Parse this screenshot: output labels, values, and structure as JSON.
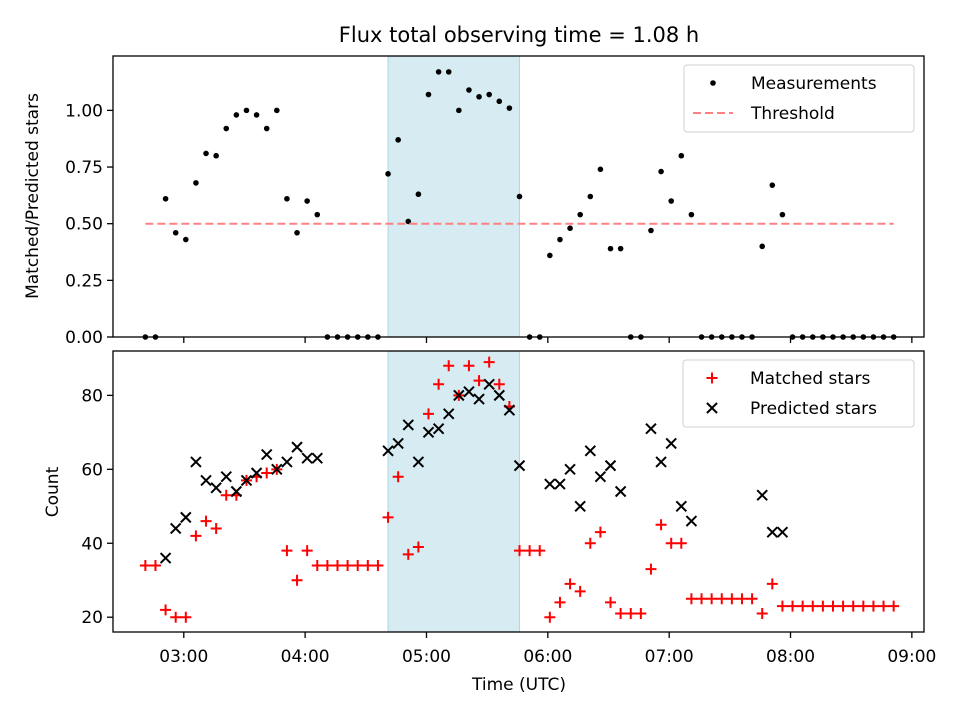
{
  "figure": {
    "title": "Flux total observing time = 1.08 h",
    "xlabel": "Time (UTC)",
    "x_ticks": [
      "03:00",
      "04:00",
      "05:00",
      "06:00",
      "07:00",
      "08:00",
      "09:00"
    ]
  },
  "chart_data": [
    {
      "type": "scatter",
      "title": "Flux total observing time = 1.08 h",
      "xlabel": "",
      "ylabel": "Matched/Predicted stars",
      "xlim": [
        "02:25",
        "09:06"
      ],
      "ylim": [
        0,
        1.24
      ],
      "y_ticks": [
        "0.00",
        "0.25",
        "0.50",
        "0.75",
        "1.00"
      ],
      "y_tick_values": [
        0,
        0.25,
        0.5,
        0.75,
        1.0
      ],
      "highlight_span": {
        "start": "04:41",
        "end": "05:46",
        "color": "#add8e6"
      },
      "legend_position": "top-right",
      "series": [
        {
          "name": "Measurements",
          "kind": "points",
          "color": "#000000",
          "points": [
            [
              "02:41",
              0.0
            ],
            [
              "02:46",
              0.0
            ],
            [
              "02:51",
              0.61
            ],
            [
              "02:56",
              0.46
            ],
            [
              "03:01",
              0.43
            ],
            [
              "03:06",
              0.68
            ],
            [
              "03:11",
              0.81
            ],
            [
              "03:16",
              0.8
            ],
            [
              "03:21",
              0.92
            ],
            [
              "03:26",
              0.98
            ],
            [
              "03:31",
              1.0
            ],
            [
              "03:36",
              0.98
            ],
            [
              "03:41",
              0.92
            ],
            [
              "03:46",
              1.0
            ],
            [
              "03:51",
              0.61
            ],
            [
              "03:56",
              0.46
            ],
            [
              "04:01",
              0.6
            ],
            [
              "04:06",
              0.54
            ],
            [
              "04:11",
              0.0
            ],
            [
              "04:16",
              0.0
            ],
            [
              "04:21",
              0.0
            ],
            [
              "04:26",
              0.0
            ],
            [
              "04:31",
              0.0
            ],
            [
              "04:36",
              0.0
            ],
            [
              "04:41",
              0.72
            ],
            [
              "04:46",
              0.87
            ],
            [
              "04:51",
              0.51
            ],
            [
              "04:56",
              0.63
            ],
            [
              "05:01",
              1.07
            ],
            [
              "05:06",
              1.17
            ],
            [
              "05:11",
              1.17
            ],
            [
              "05:16",
              1.0
            ],
            [
              "05:21",
              1.09
            ],
            [
              "05:26",
              1.06
            ],
            [
              "05:31",
              1.07
            ],
            [
              "05:36",
              1.04
            ],
            [
              "05:41",
              1.01
            ],
            [
              "05:46",
              0.62
            ],
            [
              "05:51",
              0.0
            ],
            [
              "05:56",
              0.0
            ],
            [
              "06:01",
              0.36
            ],
            [
              "06:06",
              0.43
            ],
            [
              "06:11",
              0.48
            ],
            [
              "06:16",
              0.54
            ],
            [
              "06:21",
              0.62
            ],
            [
              "06:26",
              0.74
            ],
            [
              "06:31",
              0.39
            ],
            [
              "06:36",
              0.39
            ],
            [
              "06:41",
              0.0
            ],
            [
              "06:46",
              0.0
            ],
            [
              "06:51",
              0.47
            ],
            [
              "06:56",
              0.73
            ],
            [
              "07:01",
              0.6
            ],
            [
              "07:06",
              0.8
            ],
            [
              "07:11",
              0.54
            ],
            [
              "07:16",
              0.0
            ],
            [
              "07:21",
              0.0
            ],
            [
              "07:26",
              0.0
            ],
            [
              "07:31",
              0.0
            ],
            [
              "07:36",
              0.0
            ],
            [
              "07:41",
              0.0
            ],
            [
              "07:46",
              0.4
            ],
            [
              "07:51",
              0.67
            ],
            [
              "07:56",
              0.54
            ],
            [
              "08:01",
              0.0
            ],
            [
              "08:06",
              0.0
            ],
            [
              "08:11",
              0.0
            ],
            [
              "08:16",
              0.0
            ],
            [
              "08:21",
              0.0
            ],
            [
              "08:26",
              0.0
            ],
            [
              "08:31",
              0.0
            ],
            [
              "08:36",
              0.0
            ],
            [
              "08:41",
              0.0
            ],
            [
              "08:46",
              0.0
            ],
            [
              "08:51",
              0.0
            ]
          ]
        },
        {
          "name": "Threshold",
          "kind": "dashed-line",
          "color": "#ff8080",
          "points": [
            [
              "02:41",
              0.5
            ],
            [
              "08:51",
              0.5
            ]
          ]
        }
      ]
    },
    {
      "type": "scatter",
      "title": "",
      "xlabel": "Time (UTC)",
      "ylabel": "Count",
      "xlim": [
        "02:25",
        "09:06"
      ],
      "ylim": [
        16,
        92
      ],
      "y_ticks": [
        "20",
        "40",
        "60",
        "80"
      ],
      "y_tick_values": [
        20,
        40,
        60,
        80
      ],
      "highlight_span": {
        "start": "04:41",
        "end": "05:46",
        "color": "#add8e6"
      },
      "legend_position": "top-right",
      "series": [
        {
          "name": "Matched stars",
          "kind": "plus",
          "color": "#ff0000",
          "points": [
            [
              "02:41",
              34
            ],
            [
              "02:46",
              34
            ],
            [
              "02:51",
              22
            ],
            [
              "02:56",
              20
            ],
            [
              "03:01",
              20
            ],
            [
              "03:06",
              42
            ],
            [
              "03:11",
              46
            ],
            [
              "03:16",
              44
            ],
            [
              "03:21",
              53
            ],
            [
              "03:26",
              53
            ],
            [
              "03:31",
              57
            ],
            [
              "03:36",
              58
            ],
            [
              "03:41",
              59
            ],
            [
              "03:46",
              60
            ],
            [
              "03:51",
              38
            ],
            [
              "03:56",
              30
            ],
            [
              "04:01",
              38
            ],
            [
              "04:06",
              34
            ],
            [
              "04:11",
              34
            ],
            [
              "04:16",
              34
            ],
            [
              "04:21",
              34
            ],
            [
              "04:26",
              34
            ],
            [
              "04:31",
              34
            ],
            [
              "04:36",
              34
            ],
            [
              "04:41",
              47
            ],
            [
              "04:46",
              58
            ],
            [
              "04:51",
              37
            ],
            [
              "04:56",
              39
            ],
            [
              "05:01",
              75
            ],
            [
              "05:06",
              83
            ],
            [
              "05:11",
              88
            ],
            [
              "05:16",
              80
            ],
            [
              "05:21",
              88
            ],
            [
              "05:26",
              84
            ],
            [
              "05:31",
              89
            ],
            [
              "05:36",
              83
            ],
            [
              "05:41",
              77
            ],
            [
              "05:46",
              38
            ],
            [
              "05:51",
              38
            ],
            [
              "05:56",
              38
            ],
            [
              "06:01",
              20
            ],
            [
              "06:06",
              24
            ],
            [
              "06:11",
              29
            ],
            [
              "06:16",
              27
            ],
            [
              "06:21",
              40
            ],
            [
              "06:26",
              43
            ],
            [
              "06:31",
              24
            ],
            [
              "06:36",
              21
            ],
            [
              "06:41",
              21
            ],
            [
              "06:46",
              21
            ],
            [
              "06:51",
              33
            ],
            [
              "06:56",
              45
            ],
            [
              "07:01",
              40
            ],
            [
              "07:06",
              40
            ],
            [
              "07:11",
              25
            ],
            [
              "07:16",
              25
            ],
            [
              "07:21",
              25
            ],
            [
              "07:26",
              25
            ],
            [
              "07:31",
              25
            ],
            [
              "07:36",
              25
            ],
            [
              "07:41",
              25
            ],
            [
              "07:46",
              21
            ],
            [
              "07:51",
              29
            ],
            [
              "07:56",
              23
            ],
            [
              "08:01",
              23
            ],
            [
              "08:06",
              23
            ],
            [
              "08:11",
              23
            ],
            [
              "08:16",
              23
            ],
            [
              "08:21",
              23
            ],
            [
              "08:26",
              23
            ],
            [
              "08:31",
              23
            ],
            [
              "08:36",
              23
            ],
            [
              "08:41",
              23
            ],
            [
              "08:46",
              23
            ],
            [
              "08:51",
              23
            ]
          ]
        },
        {
          "name": "Predicted stars",
          "kind": "cross",
          "color": "#000000",
          "points": [
            [
              "02:51",
              36
            ],
            [
              "02:56",
              44
            ],
            [
              "03:01",
              47
            ],
            [
              "03:06",
              62
            ],
            [
              "03:11",
              57
            ],
            [
              "03:16",
              55
            ],
            [
              "03:21",
              58
            ],
            [
              "03:26",
              54
            ],
            [
              "03:31",
              57
            ],
            [
              "03:36",
              59
            ],
            [
              "03:41",
              64
            ],
            [
              "03:46",
              60
            ],
            [
              "03:51",
              62
            ],
            [
              "03:56",
              66
            ],
            [
              "04:01",
              63
            ],
            [
              "04:06",
              63
            ],
            [
              "04:41",
              65
            ],
            [
              "04:46",
              67
            ],
            [
              "04:51",
              72
            ],
            [
              "04:56",
              62
            ],
            [
              "05:01",
              70
            ],
            [
              "05:06",
              71
            ],
            [
              "05:11",
              75
            ],
            [
              "05:16",
              80
            ],
            [
              "05:21",
              81
            ],
            [
              "05:26",
              79
            ],
            [
              "05:31",
              83
            ],
            [
              "05:36",
              80
            ],
            [
              "05:41",
              76
            ],
            [
              "05:46",
              61
            ],
            [
              "06:01",
              56
            ],
            [
              "06:06",
              56
            ],
            [
              "06:11",
              60
            ],
            [
              "06:16",
              50
            ],
            [
              "06:21",
              65
            ],
            [
              "06:26",
              58
            ],
            [
              "06:31",
              61
            ],
            [
              "06:36",
              54
            ],
            [
              "06:51",
              71
            ],
            [
              "06:56",
              62
            ],
            [
              "07:01",
              67
            ],
            [
              "07:06",
              50
            ],
            [
              "07:11",
              46
            ],
            [
              "07:46",
              53
            ],
            [
              "07:51",
              43
            ],
            [
              "07:56",
              43
            ]
          ]
        }
      ]
    }
  ]
}
